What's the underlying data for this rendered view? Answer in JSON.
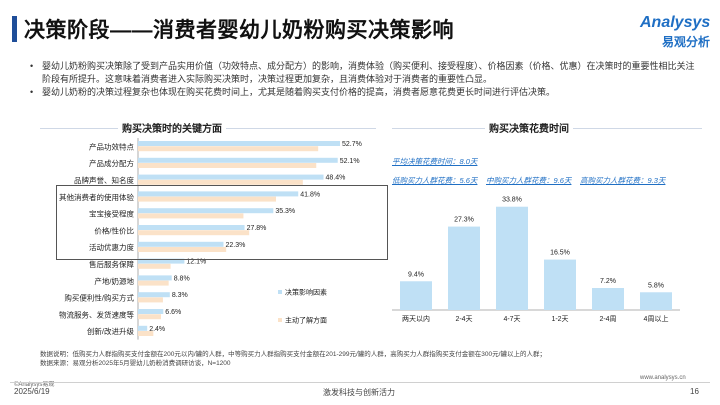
{
  "header": {
    "title": "决策阶段——消费者婴幼儿奶粉购买决策影响",
    "logo_main": "Analysys",
    "logo_sub": "易观分析",
    "accent_color": "#1f4e99"
  },
  "bullets": [
    "婴幼儿奶粉购买决策除了受到产品实用价值（功效特点、成分配方）的影响，消费体验（购买便利、接受程度）、价格因素（价格、优惠）在决策时的重要性相比关注阶段有所提升。这意味着消费者进入实际购买决策时，决策过程更加复杂，且消费体验对于消费者的重要性凸显。",
    "婴幼儿奶粉的决策过程复杂也体现在购买花费时间上，尤其是随着购买支付价格的提高，消费者愿意花费更长时间进行评估决策。"
  ],
  "chart_data": [
    {
      "type": "bar",
      "orientation": "horizontal",
      "title": "购买决策时的关键方面",
      "categories": [
        "产品功效特点",
        "产品成分配方",
        "品牌声誉、知名度",
        "其他消费者的使用体验",
        "宝宝接受程度",
        "价格/性价比",
        "活动优惠力度",
        "售后服务保障",
        "产地/奶源地",
        "购买便利性/购买方式",
        "物流服务、发货速度等",
        "创新/改进升级"
      ],
      "series": [
        {
          "name": "决策影响因素",
          "color": "#bfe0f5",
          "values": [
            52.7,
            52.1,
            48.4,
            41.8,
            35.3,
            27.8,
            22.3,
            12.1,
            8.8,
            8.3,
            6.6,
            2.4
          ]
        },
        {
          "name": "主动了解方面",
          "color": "#fbe2c8",
          "values": [
            47.0,
            46.5,
            43.0,
            36.0,
            27.5,
            29.0,
            23.0,
            8.5,
            8.0,
            6.5,
            6.0,
            4.0
          ]
        }
      ],
      "data_labels": [
        "52.7%",
        "52.1%",
        "48.4%",
        "41.8%",
        "35.3%",
        "27.8%",
        "22.3%",
        "12.1%",
        "8.8%",
        "8.3%",
        "6.6%",
        "2.4%"
      ],
      "xlim": [
        0,
        60
      ]
    },
    {
      "type": "bar",
      "title": "购买决策花费时间",
      "categories": [
        "两天以内",
        "2-4天",
        "4-7天",
        "1-2天",
        "2-4周",
        "4周以上"
      ],
      "values": [
        9.4,
        27.3,
        33.8,
        16.5,
        7.2,
        5.8
      ],
      "data_labels": [
        "9.4%",
        "27.3%",
        "33.8%",
        "16.5%",
        "7.2%",
        "5.8%"
      ],
      "color": "#bfe0f5",
      "ylim": [
        0,
        36
      ],
      "annotations": {
        "avg": "平均决策花费时间：8.0天",
        "low": "低购买力人群花费：5.6天",
        "mid": "中购买力人群花费：9.6天",
        "high": "高购买力人群花费：9.3天"
      }
    }
  ],
  "footnote": [
    "数据说明：低购买力人群指购买支付金额在200元以内/罐的人群，中等购买力人群指购买支付金额在201-299元/罐的人群，高购买力人群指购买支付金额在300元/罐以上的人群；",
    "数据来源：易观分析2025年5月婴幼儿奶粉消费调研访谈，N=1200"
  ],
  "footer": {
    "copyright": "©Analysys易观",
    "website": "www.analysys.cn",
    "date": "2025/6/19",
    "slogan": "激发科技与创新活力",
    "page": "16"
  }
}
